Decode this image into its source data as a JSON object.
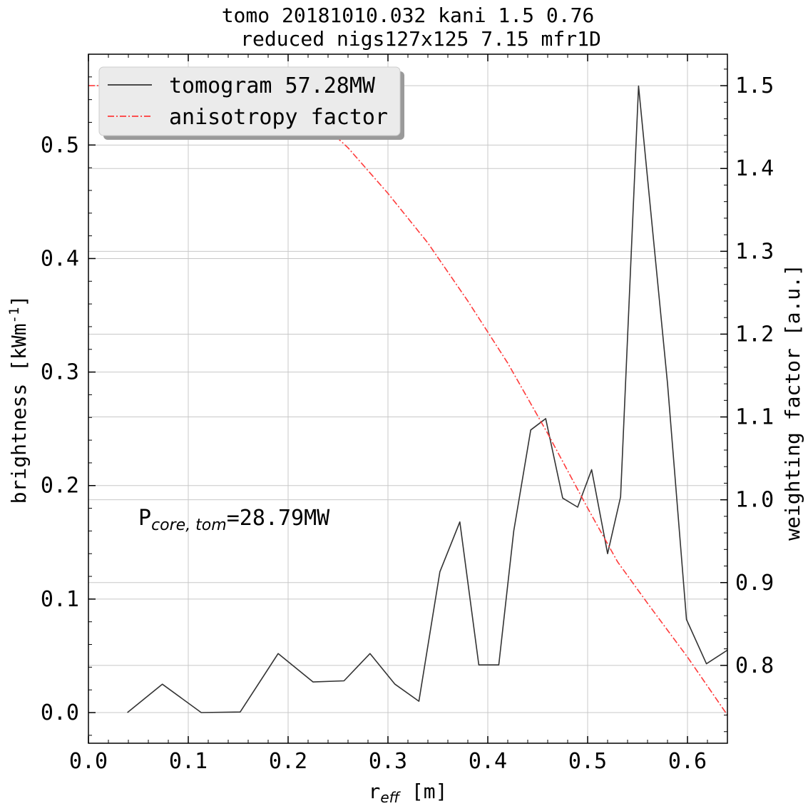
{
  "chart_data": {
    "type": "line",
    "title": [
      "tomo 20181010.032 kani 1.5 0.76",
      "reduced nigs127x125 7.15 mfr1D"
    ],
    "xlabel": {
      "main": "r",
      "sub": "eff",
      "unit": " [m]"
    },
    "ylabel_left": {
      "main": "brightness [kWm",
      "sup": "-1",
      "end": "]"
    },
    "ylabel_right": "weighting factor [a.u.]",
    "xlim": [
      0.0,
      0.64
    ],
    "ylim_left": [
      -0.027,
      0.58
    ],
    "ylim_right": [
      0.706,
      1.538
    ],
    "x_ticks": [
      "0.0",
      "0.1",
      "0.2",
      "0.3",
      "0.4",
      "0.5",
      "0.6"
    ],
    "y_left_ticks": [
      "0.0",
      "0.1",
      "0.2",
      "0.3",
      "0.4",
      "0.5"
    ],
    "y_right_ticks": [
      "0.8",
      "0.9",
      "1.0",
      "1.1",
      "1.2",
      "1.3",
      "1.4",
      "1.5"
    ],
    "grid": true,
    "legend_position": "top-left",
    "annotation": {
      "main": "P",
      "sub": "core, tom",
      "rest": "=28.79MW"
    },
    "series": [
      {
        "name": "tomogram 57.28MW",
        "axis": "left",
        "color": "#333333",
        "style": "solid",
        "x": [
          0.039,
          0.074,
          0.113,
          0.152,
          0.19,
          0.225,
          0.256,
          0.282,
          0.307,
          0.331,
          0.352,
          0.372,
          0.391,
          0.411,
          0.426,
          0.443,
          0.458,
          0.475,
          0.49,
          0.504,
          0.52,
          0.533,
          0.551,
          0.58,
          0.599,
          0.619,
          0.64
        ],
        "values": [
          0.0,
          0.025,
          0.0,
          0.0005,
          0.052,
          0.027,
          0.028,
          0.052,
          0.025,
          0.01,
          0.124,
          0.168,
          0.042,
          0.042,
          0.16,
          0.249,
          0.259,
          0.189,
          0.181,
          0.214,
          0.14,
          0.19,
          0.552,
          0.29,
          0.082,
          0.043,
          0.055
        ]
      },
      {
        "name": "anisotropy factor",
        "axis": "right",
        "color": "#ff3b3b",
        "style": "dashdot",
        "x": [
          0.0,
          0.19,
          0.22,
          0.26,
          0.3,
          0.34,
          0.38,
          0.42,
          0.46,
          0.5,
          0.53,
          0.56,
          0.6,
          0.64
        ],
        "values": [
          1.5,
          1.5,
          1.47,
          1.425,
          1.37,
          1.31,
          1.24,
          1.165,
          1.08,
          0.99,
          0.925,
          0.875,
          0.81,
          0.74
        ]
      }
    ]
  }
}
